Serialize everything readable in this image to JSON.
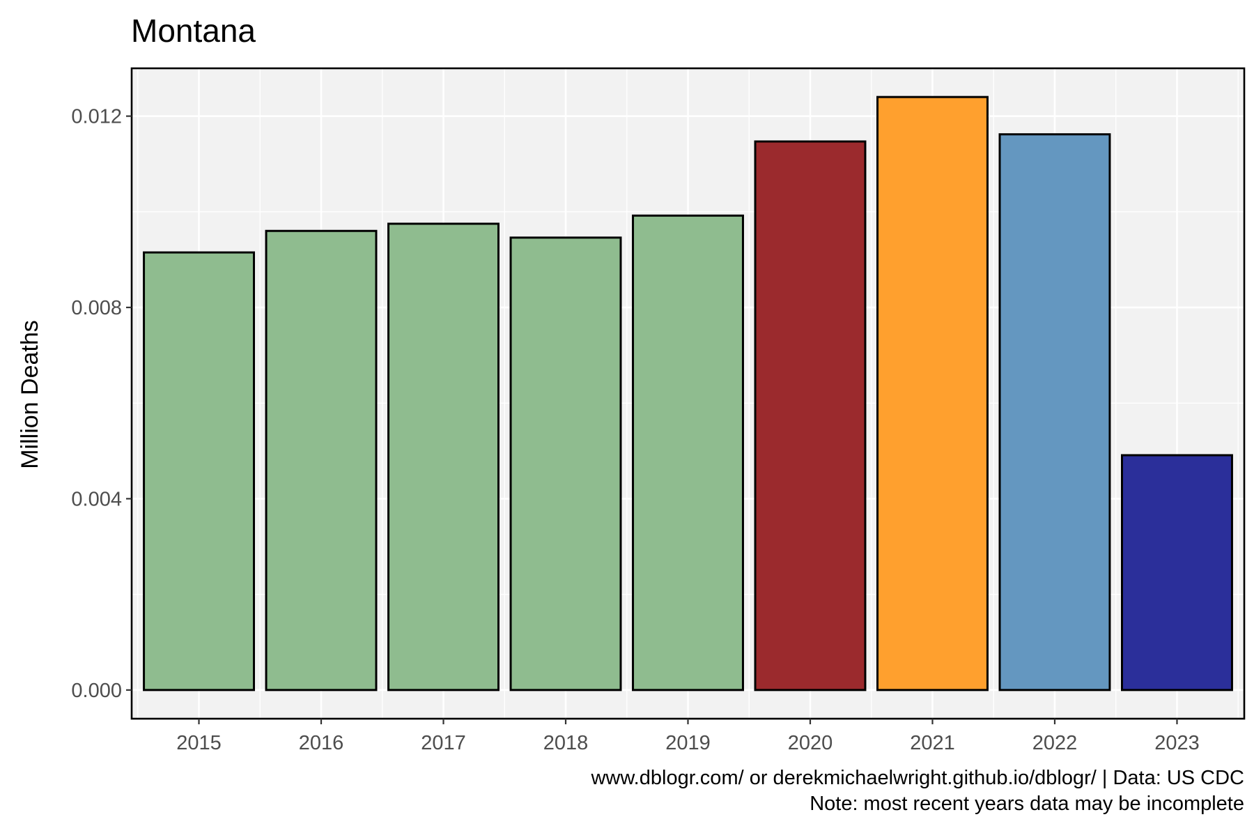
{
  "chart_data": {
    "type": "bar",
    "title": "Montana",
    "xlabel": "",
    "ylabel": "Million Deaths",
    "categories": [
      "2015",
      "2016",
      "2017",
      "2018",
      "2019",
      "2020",
      "2021",
      "2022",
      "2023"
    ],
    "values": [
      0.00915,
      0.0096,
      0.00975,
      0.00946,
      0.00992,
      0.01147,
      0.0124,
      0.01162,
      0.00491
    ],
    "bar_colors": [
      "#8fbc8f",
      "#8fbc8f",
      "#8fbc8f",
      "#8fbc8f",
      "#8fbc8f",
      "#9b2a2d",
      "#ffa02e",
      "#6497c0",
      "#2b2f9a"
    ],
    "ylim": [
      -0.0006,
      0.013
    ],
    "yticks": [
      0.0,
      0.004,
      0.008,
      0.012
    ],
    "ytick_labels": [
      "0.000",
      "0.004",
      "0.008",
      "0.012"
    ],
    "grid": true,
    "legend": "none",
    "caption_lines": [
      "www.dblogr.com/ or derekmichaelwright.github.io/dblogr/ | Data: US CDC",
      "Note: most recent years data may be incomplete"
    ]
  },
  "colors": {
    "panel_background": "#f2f2f2",
    "grid": "#ffffff",
    "border": "#000000",
    "tick_text": "#4d4d4d"
  }
}
